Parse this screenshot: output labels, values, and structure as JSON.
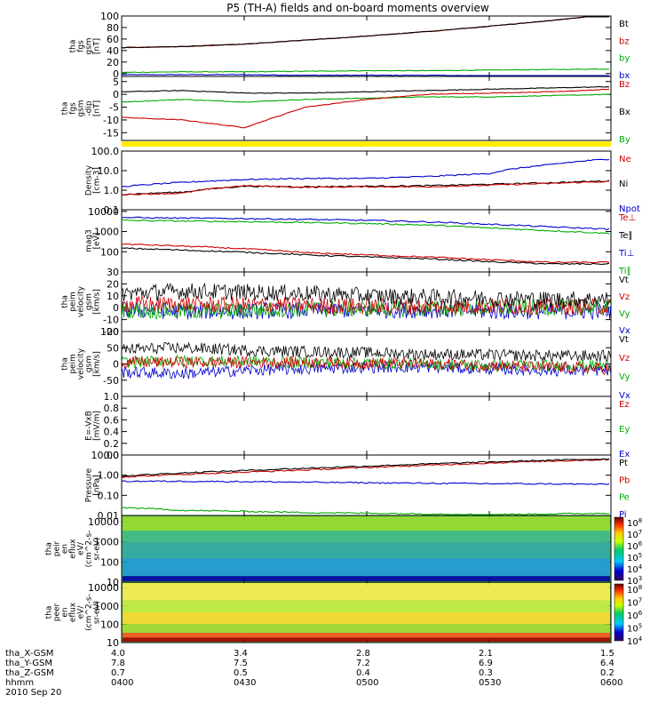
{
  "chart_data": {
    "type": "line",
    "title": "P5 (TH-A) fields and on-board moments overview",
    "time_labels": [
      "0400",
      "0430",
      "0500",
      "0530",
      "0600"
    ],
    "date_label": "2010 Sep 20",
    "orbit_rows": [
      {
        "label": "tha_X-GSM",
        "values": [
          "4.0",
          "3.4",
          "2.8",
          "2.1",
          "1.5"
        ]
      },
      {
        "label": "tha_Y-GSM",
        "values": [
          "7.8",
          "7.5",
          "7.2",
          "6.9",
          "6.4"
        ]
      },
      {
        "label": "tha_Z-GSM",
        "values": [
          "0.7",
          "0.5",
          "0.4",
          "0.3",
          "0.2"
        ]
      },
      {
        "label": "hhmm",
        "values": [
          "0400",
          "0430",
          "0500",
          "0530",
          "0600"
        ]
      }
    ],
    "panels": [
      {
        "id": "fgs-gsm",
        "ylabel": [
          "tha",
          "fgs",
          "gsm",
          "[nT]"
        ],
        "ylim": [
          -5,
          100
        ],
        "scale": "linear",
        "yticks": [
          "100",
          "80",
          "60",
          "40",
          "20",
          "0"
        ],
        "series": [
          {
            "name": "Bt",
            "color": "#000000"
          },
          {
            "name": "bz",
            "color": "#cc0000"
          },
          {
            "name": "by",
            "color": "#00aa00"
          },
          {
            "name": "bx",
            "color": "#0000cc"
          }
        ]
      },
      {
        "id": "fgs-dipole",
        "ylabel": [
          "tha",
          "fgs",
          "gsm",
          "-dip",
          "[nT]"
        ],
        "ylim": [
          -18,
          7
        ],
        "scale": "linear",
        "yticks": [
          "5",
          "0",
          "-5",
          "-10",
          "-15"
        ],
        "series": [
          {
            "name": "Bz",
            "color": "#cc0000"
          },
          {
            "name": "Bx",
            "color": "#000000"
          },
          {
            "name": "By",
            "color": "#00aa00"
          }
        ]
      },
      {
        "id": "density",
        "ylabel": [
          "Density",
          "[cm-3]"
        ],
        "ylim": [
          0.1,
          100
        ],
        "scale": "log",
        "yticks": [
          "100.0",
          "10.0",
          "1.0",
          "0.1"
        ],
        "series": [
          {
            "name": "Ne",
            "color": "#cc0000"
          },
          {
            "name": "Ni",
            "color": "#000000"
          },
          {
            "name": "Npot",
            "color": "#0000cc"
          }
        ]
      },
      {
        "id": "temperature",
        "ylabel": [
          "mag3",
          "[eV]"
        ],
        "ylim": [
          10,
          12000
        ],
        "scale": "log",
        "yticks": [
          "10000",
          "1000",
          "100"
        ],
        "series": [
          {
            "name": "Te⊥",
            "color": "#cc0000"
          },
          {
            "name": "Te∥",
            "color": "#000000"
          },
          {
            "name": "Ti⊥",
            "color": "#0000cc"
          },
          {
            "name": "Ti∥",
            "color": "#00aa00"
          }
        ]
      },
      {
        "id": "velocity-1",
        "ylabel": [
          "tha",
          "peim",
          "velocity",
          "gsm",
          "[km/s]"
        ],
        "ylim": [
          -20,
          30
        ],
        "scale": "linear",
        "yticks": [
          "30",
          "20",
          "10",
          "0",
          "-10",
          "-20"
        ],
        "series": [
          {
            "name": "Vt",
            "color": "#000000"
          },
          {
            "name": "Vz",
            "color": "#cc0000"
          },
          {
            "name": "Vy",
            "color": "#00aa00"
          },
          {
            "name": "Vx",
            "color": "#0000cc"
          }
        ]
      },
      {
        "id": "velocity-2",
        "ylabel": [
          "tha",
          "peim",
          "velocity",
          "gsm",
          "[km/s]"
        ],
        "ylim": [
          -100,
          100
        ],
        "scale": "linear",
        "yticks": [
          "100",
          "50",
          "0",
          "-50"
        ],
        "series": [
          {
            "name": "Vt",
            "color": "#000000"
          },
          {
            "name": "Vz",
            "color": "#cc0000"
          },
          {
            "name": "Vy",
            "color": "#00aa00"
          },
          {
            "name": "Vx",
            "color": "#0000cc"
          }
        ]
      },
      {
        "id": "efield",
        "ylabel": [
          "E=-VxB",
          "[mV/m]"
        ],
        "ylim": [
          0,
          1
        ],
        "scale": "linear",
        "yticks": [
          "1.0",
          "0.8",
          "0.6",
          "0.4",
          "0.2",
          "0.0"
        ],
        "series": [
          {
            "name": "Ez",
            "color": "#cc0000"
          },
          {
            "name": "Ey",
            "color": "#00aa00"
          },
          {
            "name": "Ex",
            "color": "#0000cc"
          }
        ]
      },
      {
        "id": "pressure",
        "ylabel": [
          "Pressure",
          "[nPa]"
        ],
        "ylim": [
          0.01,
          10
        ],
        "scale": "log",
        "yticks": [
          "10.00",
          "1.00",
          "0.10",
          "0.01"
        ],
        "series": [
          {
            "name": "Pt",
            "color": "#000000"
          },
          {
            "name": "Pb",
            "color": "#cc0000"
          },
          {
            "name": "Pe",
            "color": "#00aa00"
          },
          {
            "name": "Pi",
            "color": "#0000cc"
          }
        ]
      },
      {
        "id": "ion-spectrogram",
        "ylabel": [
          "tha",
          "peir",
          "en",
          "eflux",
          "eV/",
          "(cm^2-s-",
          "sr-eV)"
        ],
        "ylim": [
          10,
          20000
        ],
        "scale": "log",
        "yticks": [
          "10000",
          "1000",
          "100",
          "10"
        ],
        "colorbar_ticks": [
          "10^8",
          "10^7",
          "10^6",
          "10^5",
          "10^4",
          "10^3"
        ]
      },
      {
        "id": "electron-spectrogram",
        "ylabel": [
          "tha",
          "peer",
          "en",
          "eflux",
          "eV/",
          "(cm^2-s-",
          "sr-eV)"
        ],
        "ylim": [
          10,
          20000
        ],
        "scale": "log",
        "yticks": [
          "10000",
          "1000",
          "100",
          "10"
        ],
        "colorbar_ticks": [
          "10^8",
          "10^7",
          "10^6",
          "10^5",
          "10^4"
        ]
      }
    ],
    "series_data": {
      "x": [
        0,
        15,
        30,
        45,
        60,
        75,
        90,
        105,
        120
      ],
      "fgs-gsm": {
        "Bt": [
          45,
          47,
          51,
          58,
          65,
          73,
          82,
          92,
          103
        ],
        "bz": [
          45,
          47,
          51,
          58,
          65,
          73,
          82,
          92,
          103
        ],
        "by": [
          2,
          3,
          3,
          4,
          5,
          5,
          6,
          7,
          8
        ],
        "bx": [
          -2,
          -2,
          -2,
          -3,
          -3,
          -3,
          -4,
          -4,
          -4
        ]
      },
      "fgs-dipole": {
        "Bx": [
          1,
          1.5,
          0.5,
          0.5,
          1,
          1.5,
          2,
          2.5,
          3
        ],
        "Bz": [
          -9,
          -10,
          -13,
          -5,
          -2,
          0,
          0.5,
          1,
          2
        ],
        "By": [
          -3,
          -2,
          -3,
          -2,
          -1.5,
          -1,
          -1,
          -0.5,
          0
        ]
      },
      "density": {
        "Npot": [
          1.5,
          2.5,
          3.5,
          4,
          4,
          5,
          7,
          20,
          40
        ],
        "Ni": [
          0.6,
          0.8,
          1.6,
          1.5,
          1.6,
          1.7,
          2.0,
          2.4,
          3.0
        ],
        "Ne": [
          0.6,
          0.7,
          1.7,
          1.4,
          1.5,
          1.5,
          1.8,
          2.2,
          2.8
        ]
      },
      "temperature": {
        "Ti⊥": [
          5000,
          4600,
          4400,
          4000,
          3600,
          3000,
          2300,
          1700,
          1300
        ],
        "Ti∥": [
          3600,
          3300,
          3100,
          2800,
          2500,
          2100,
          1500,
          1100,
          800
        ],
        "Te⊥": [
          240,
          190,
          140,
          90,
          70,
          55,
          40,
          30,
          30
        ],
        "Te∥": [
          150,
          120,
          95,
          70,
          55,
          45,
          32,
          25,
          25
        ]
      },
      "pressure": {
        "Pt": [
          0.9,
          1.3,
          1.7,
          2.2,
          2.8,
          3.6,
          4.5,
          5.5,
          6.5
        ],
        "Pb": [
          0.8,
          1.1,
          1.4,
          1.8,
          2.4,
          3.1,
          4.0,
          5.0,
          6.0
        ],
        "Pe": [
          0.025,
          0.018,
          0.016,
          0.014,
          0.013,
          0.012,
          0.011,
          0.012,
          0.013
        ],
        "Pi": [
          0.5,
          0.5,
          0.48,
          0.45,
          0.42,
          0.4,
          0.38,
          0.37,
          0.35
        ]
      },
      "velocity-1": {
        "Vt": [
          12,
          14,
          13,
          12,
          10,
          9,
          8,
          7,
          7
        ],
        "Vz": [
          3,
          3,
          2,
          2,
          1,
          1,
          1,
          1,
          1
        ],
        "Vy": [
          -2,
          -3,
          -2,
          -1,
          -1,
          -1,
          0,
          0,
          0
        ],
        "Vx": [
          -2,
          -3,
          -3,
          -2,
          -2,
          -2,
          -3,
          -3,
          -3
        ]
      },
      "velocity-2": {
        "Vt": [
          45,
          50,
          42,
          38,
          35,
          30,
          28,
          25,
          25
        ],
        "Vz": [
          5,
          5,
          5,
          5,
          3,
          0,
          -5,
          -10,
          -15
        ],
        "Vy": [
          5,
          10,
          8,
          5,
          3,
          0,
          -5,
          -5,
          -5
        ],
        "Vx": [
          -25,
          -30,
          -20,
          -15,
          -10,
          -10,
          -15,
          -20,
          -20
        ]
      }
    }
  }
}
